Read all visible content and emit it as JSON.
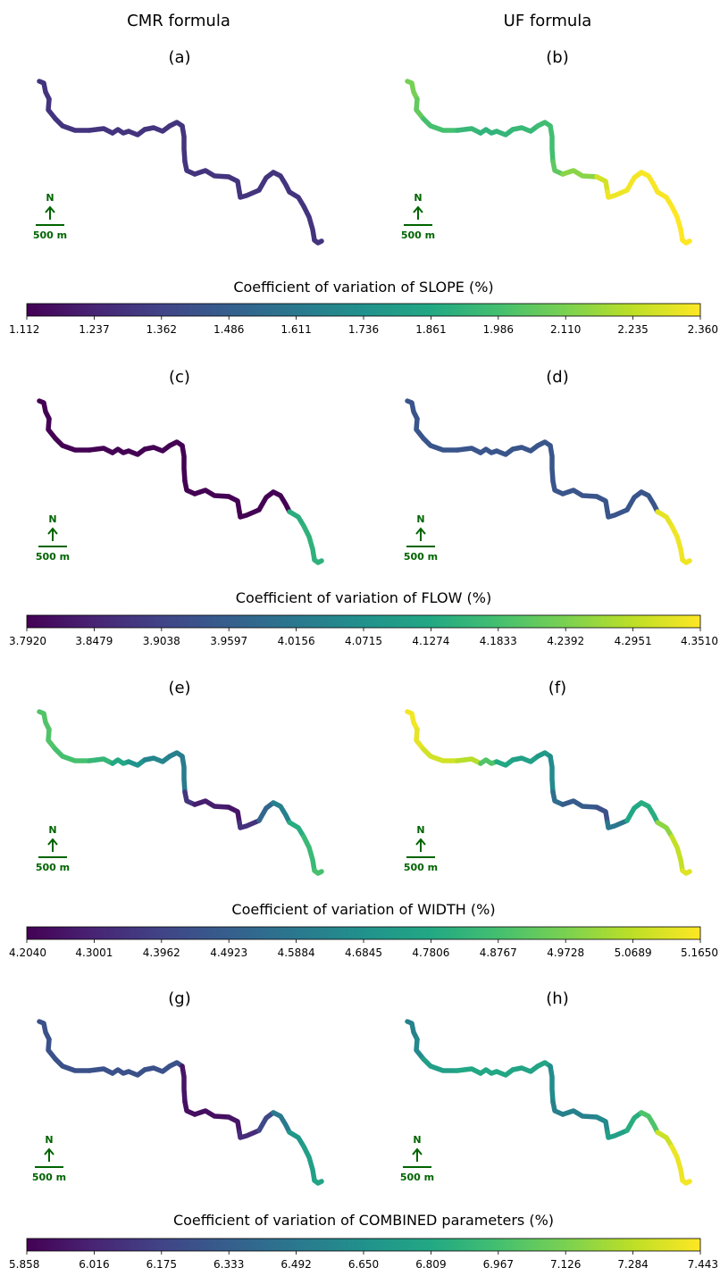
{
  "column_titles": [
    "CMR formula",
    "UF formula"
  ],
  "scale_bar": {
    "north": "N",
    "length": "500 m"
  },
  "chart_data": {
    "type": "map",
    "colormap": "viridis",
    "panels": [
      {
        "letter": "(a)",
        "formula": "CMR formula",
        "parameter": "SLOPE",
        "segment_values": [
          1.3,
          1.3,
          1.3,
          1.3,
          1.3,
          1.3,
          1.3,
          1.3,
          1.3,
          1.3,
          1.3,
          1.3,
          1.3,
          1.3,
          1.3,
          1.3,
          1.3,
          1.3
        ]
      },
      {
        "letter": "(b)",
        "formula": "UF formula",
        "parameter": "SLOPE",
        "segment_values": [
          2.1,
          2.06,
          1.99,
          1.94,
          1.92,
          1.93,
          1.95,
          1.97,
          1.98,
          2.05,
          2.14,
          2.28,
          2.33,
          2.34,
          2.35,
          2.35,
          2.36,
          2.36
        ]
      },
      {
        "letter": "(c)",
        "formula": "CMR formula",
        "parameter": "FLOW",
        "segment_values": [
          3.79,
          3.79,
          3.79,
          3.79,
          3.79,
          3.79,
          3.79,
          3.79,
          3.79,
          3.79,
          3.79,
          3.79,
          3.79,
          3.79,
          3.79,
          4.14,
          4.15,
          4.15
        ]
      },
      {
        "letter": "(d)",
        "formula": "UF formula",
        "parameter": "FLOW",
        "segment_values": [
          3.94,
          3.94,
          3.94,
          3.94,
          3.94,
          3.94,
          3.94,
          3.94,
          3.94,
          3.94,
          3.94,
          3.94,
          3.94,
          3.94,
          3.94,
          4.33,
          4.34,
          4.34
        ]
      },
      {
        "letter": "(e)",
        "formula": "CMR formula",
        "parameter": "WIDTH",
        "segment_values": [
          4.9,
          4.9,
          4.88,
          4.84,
          4.78,
          4.7,
          4.64,
          4.62,
          4.6,
          4.35,
          4.28,
          4.26,
          4.34,
          4.52,
          4.62,
          4.8,
          4.85,
          4.88
        ]
      },
      {
        "letter": "(f)",
        "formula": "UF formula",
        "parameter": "WIDTH",
        "segment_values": [
          5.15,
          5.13,
          5.1,
          5.06,
          4.9,
          4.78,
          4.75,
          4.72,
          4.66,
          4.55,
          4.48,
          4.44,
          4.58,
          4.78,
          4.8,
          5.0,
          5.08,
          5.12
        ]
      },
      {
        "letter": "(g)",
        "formula": "CMR formula",
        "parameter": "COMBINED",
        "segment_values": [
          6.25,
          6.25,
          6.25,
          6.25,
          6.25,
          6.25,
          6.25,
          6.25,
          5.95,
          5.92,
          5.92,
          5.95,
          6.05,
          6.2,
          6.5,
          6.7,
          6.75,
          6.78
        ]
      },
      {
        "letter": "(h)",
        "formula": "UF formula",
        "parameter": "COMBINED",
        "segment_values": [
          6.55,
          6.6,
          6.75,
          6.8,
          6.8,
          6.8,
          6.78,
          6.78,
          6.62,
          6.55,
          6.55,
          6.6,
          6.75,
          6.85,
          7.0,
          7.32,
          7.4,
          7.42
        ]
      }
    ],
    "colorbars": [
      {
        "label": "Coefficient of variation of SLOPE (%)",
        "min": 1.112,
        "max": 2.36,
        "ticks": [
          "1.112",
          "1.237",
          "1.362",
          "1.486",
          "1.611",
          "1.736",
          "1.861",
          "1.986",
          "2.110",
          "2.235",
          "2.360"
        ]
      },
      {
        "label": "Coefficient of variation of FLOW (%)",
        "min": 3.792,
        "max": 4.351,
        "ticks": [
          "3.7920",
          "3.8479",
          "3.9038",
          "3.9597",
          "4.0156",
          "4.0715",
          "4.1274",
          "4.1833",
          "4.2392",
          "4.2951",
          "4.3510"
        ]
      },
      {
        "label": "Coefficient of variation of WIDTH (%)",
        "min": 4.204,
        "max": 5.165,
        "ticks": [
          "4.2040",
          "4.3001",
          "4.3962",
          "4.4923",
          "4.5884",
          "4.6845",
          "4.7806",
          "4.8767",
          "4.9728",
          "5.0689",
          "5.1650"
        ]
      },
      {
        "label": "Coefficient of variation of COMBINED parameters (%)",
        "min": 5.858,
        "max": 7.443,
        "ticks": [
          "5.858",
          "6.016",
          "6.175",
          "6.333",
          "6.492",
          "6.650",
          "6.809",
          "6.967",
          "7.126",
          "7.284",
          "7.443"
        ]
      }
    ]
  }
}
